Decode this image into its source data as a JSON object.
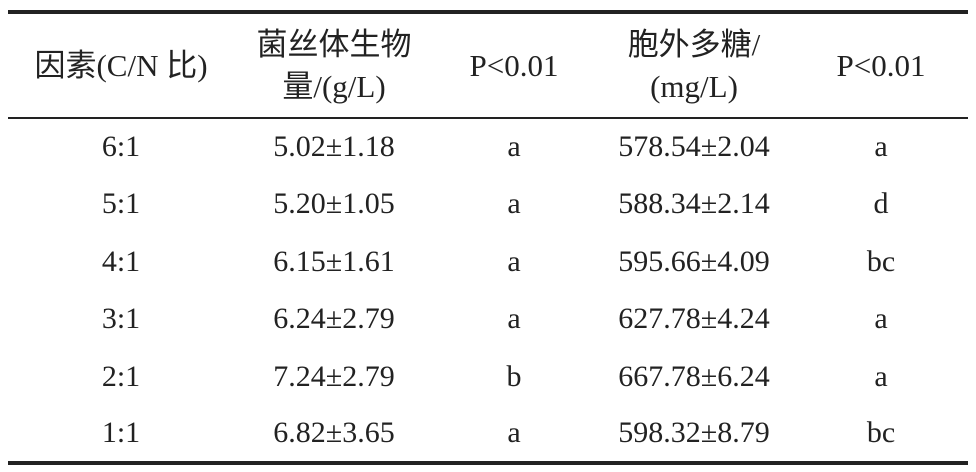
{
  "table": {
    "header": [
      [
        "因素(C/N 比)"
      ],
      [
        "菌丝体生物",
        "量/(g/L)"
      ],
      [
        "P<0.01"
      ],
      [
        "胞外多糖/",
        "(mg/L)"
      ],
      [
        "P<0.01"
      ]
    ],
    "rows": [
      [
        "6:1",
        "5.02±1.18",
        "a",
        "578.54±2.04",
        "a"
      ],
      [
        "5:1",
        "5.20±1.05",
        "a",
        "588.34±2.14",
        "d"
      ],
      [
        "4:1",
        "6.15±1.61",
        "a",
        "595.66±4.09",
        "bc"
      ],
      [
        "3:1",
        "6.24±2.79",
        "a",
        "627.78±4.24",
        "a"
      ],
      [
        "2:1",
        "7.24±2.79",
        "b",
        "667.78±6.24",
        "a"
      ],
      [
        "1:1",
        "6.82±3.65",
        "a",
        "598.32±8.79",
        "bc"
      ]
    ]
  }
}
